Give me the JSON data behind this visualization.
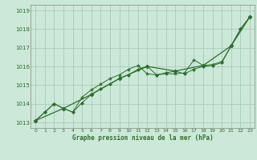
{
  "title": "Graphe pression niveau de la mer (hPa)",
  "bg_color": "#cce8d8",
  "grid_color": "#aacaba",
  "line_color": "#2d6e2d",
  "xlim": [
    -0.5,
    23.5
  ],
  "ylim": [
    1012.7,
    1019.3
  ],
  "yticks": [
    1013,
    1014,
    1015,
    1016,
    1017,
    1018,
    1019
  ],
  "xticks": [
    0,
    1,
    2,
    3,
    4,
    5,
    6,
    7,
    8,
    9,
    10,
    11,
    12,
    13,
    14,
    15,
    16,
    17,
    18,
    19,
    20,
    21,
    22,
    23
  ],
  "series1_x": [
    0,
    1,
    2,
    3,
    4,
    5,
    6,
    7,
    8,
    9,
    10,
    11,
    12,
    13,
    14,
    15,
    16,
    17,
    18,
    19,
    20,
    21,
    22,
    23
  ],
  "series1_y": [
    1013.1,
    1013.55,
    1014.0,
    1013.75,
    1013.55,
    1014.05,
    1014.5,
    1014.8,
    1015.05,
    1015.35,
    1015.55,
    1015.85,
    1016.0,
    1015.55,
    1015.65,
    1015.75,
    1015.6,
    1015.85,
    1016.0,
    1016.05,
    1016.2,
    1017.1,
    1018.0,
    1018.65
  ],
  "series2_x": [
    0,
    1,
    2,
    3,
    4,
    5,
    6,
    7,
    8,
    9,
    10,
    11,
    12,
    13,
    14,
    15,
    16,
    17,
    18,
    19,
    20,
    21,
    22,
    23
  ],
  "series2_y": [
    1013.1,
    1013.55,
    1014.0,
    1013.75,
    1013.55,
    1014.35,
    1014.75,
    1015.05,
    1015.35,
    1015.55,
    1015.85,
    1016.05,
    1015.6,
    1015.55,
    1015.6,
    1015.6,
    1015.65,
    1016.35,
    1016.05,
    1016.1,
    1016.25,
    1017.1,
    1018.0,
    1018.65
  ],
  "series3_x": [
    0,
    3,
    6,
    9,
    12,
    15,
    18,
    21,
    23
  ],
  "series3_y": [
    1013.1,
    1013.75,
    1014.5,
    1015.35,
    1016.0,
    1015.75,
    1016.05,
    1017.1,
    1018.65
  ]
}
